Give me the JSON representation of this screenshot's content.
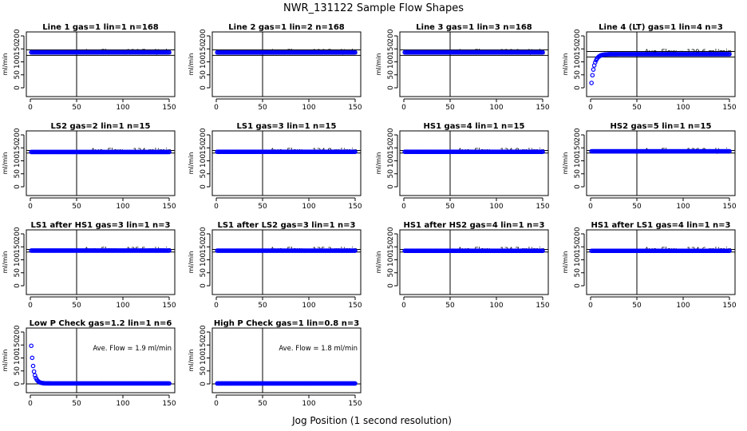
{
  "title": "NWR_131122  Sample Flow Shapes",
  "xlabel": "Jog Position (1 second resolution)",
  "chart_data": [
    {
      "type": "scatter",
      "title": "Line 1 gas=1 lin=1 n=168",
      "ylabel": "ml/min",
      "annotation": "Ave. Flow =  136.7  ml/min",
      "xlim": [
        0,
        150
      ],
      "ylim": [
        0,
        200
      ],
      "xticks": [
        0,
        50,
        100,
        150
      ],
      "yticks": [
        0,
        50,
        100,
        150,
        200
      ],
      "vline": 50,
      "hlines": [
        125,
        146
      ],
      "shape": "flat",
      "level": 136.7
    },
    {
      "type": "scatter",
      "title": "Line 2 gas=1 lin=2 n=168",
      "ylabel": "ml/min",
      "annotation": "Ave. Flow =  136.5  ml/min",
      "xlim": [
        0,
        150
      ],
      "ylim": [
        0,
        200
      ],
      "xticks": [
        0,
        50,
        100,
        150
      ],
      "yticks": [
        0,
        50,
        100,
        150,
        200
      ],
      "vline": 50,
      "hlines": [
        125,
        146
      ],
      "shape": "flat",
      "level": 136.5
    },
    {
      "type": "scatter",
      "title": "Line 3 gas=1 lin=3 n=168",
      "ylabel": "ml/min",
      "annotation": "Ave. Flow =  136.6  ml/min",
      "xlim": [
        0,
        150
      ],
      "ylim": [
        0,
        200
      ],
      "xticks": [
        0,
        50,
        100,
        150
      ],
      "yticks": [
        0,
        50,
        100,
        150,
        200
      ],
      "vline": 50,
      "hlines": [
        125,
        146
      ],
      "shape": "flat",
      "level": 136.6
    },
    {
      "type": "scatter",
      "title": "Line 4 (LT) gas=1 lin=4 n=3",
      "ylabel": "ml/min",
      "annotation": "Ave. Flow =  129.6  ml/min",
      "xlim": [
        0,
        150
      ],
      "ylim": [
        0,
        200
      ],
      "xticks": [
        0,
        50,
        100,
        150
      ],
      "yticks": [
        0,
        50,
        100,
        150,
        200
      ],
      "vline": 50,
      "hlines": [
        119,
        140
      ],
      "shape": "rise",
      "level": 129.6
    },
    {
      "type": "scatter",
      "title": "LS2 gas=2 lin=1 n=15",
      "ylabel": "ml/min",
      "annotation": "Ave. Flow =  134  ml/min",
      "xlim": [
        0,
        150
      ],
      "ylim": [
        0,
        200
      ],
      "xticks": [
        0,
        50,
        100,
        150
      ],
      "yticks": [
        0,
        50,
        100,
        150,
        200
      ],
      "vline": 50,
      "hlines": [
        130,
        140
      ],
      "shape": "flat",
      "level": 134
    },
    {
      "type": "scatter",
      "title": "LS1 gas=3 lin=1 n=15",
      "ylabel": "ml/min",
      "annotation": "Ave. Flow =  134.8  ml/min",
      "xlim": [
        0,
        150
      ],
      "ylim": [
        0,
        200
      ],
      "xticks": [
        0,
        50,
        100,
        150
      ],
      "yticks": [
        0,
        50,
        100,
        150,
        200
      ],
      "vline": 50,
      "hlines": [
        130,
        140
      ],
      "shape": "flat",
      "level": 134.8
    },
    {
      "type": "scatter",
      "title": "HS1 gas=4 lin=1 n=15",
      "ylabel": "ml/min",
      "annotation": "Ave. Flow =  134.8  ml/min",
      "xlim": [
        0,
        150
      ],
      "ylim": [
        0,
        200
      ],
      "xticks": [
        0,
        50,
        100,
        150
      ],
      "yticks": [
        0,
        50,
        100,
        150,
        200
      ],
      "vline": 50,
      "hlines": [
        130,
        140
      ],
      "shape": "flat",
      "level": 134.8
    },
    {
      "type": "scatter",
      "title": "HS2 gas=5 lin=1 n=15",
      "ylabel": "ml/min",
      "annotation": "Ave. Flow =  136.8  ml/min",
      "xlim": [
        0,
        150
      ],
      "ylim": [
        0,
        200
      ],
      "xticks": [
        0,
        50,
        100,
        150
      ],
      "yticks": [
        0,
        50,
        100,
        150,
        200
      ],
      "vline": 50,
      "hlines": [
        130,
        140
      ],
      "shape": "flat",
      "level": 136.8
    },
    {
      "type": "scatter",
      "title": "LS1 after HS1 gas=3 lin=1 n=3",
      "ylabel": "ml/min",
      "annotation": "Ave. Flow =  135.5  ml/min",
      "xlim": [
        0,
        150
      ],
      "ylim": [
        0,
        200
      ],
      "xticks": [
        0,
        50,
        100,
        150
      ],
      "yticks": [
        0,
        50,
        100,
        150,
        200
      ],
      "vline": 50,
      "hlines": [
        130,
        140
      ],
      "shape": "flat",
      "level": 135.5
    },
    {
      "type": "scatter",
      "title": "LS1 after LS2 gas=3 lin=1 n=3",
      "ylabel": "ml/min",
      "annotation": "Ave. Flow =  135.3  ml/min",
      "xlim": [
        0,
        150
      ],
      "ylim": [
        0,
        200
      ],
      "xticks": [
        0,
        50,
        100,
        150
      ],
      "yticks": [
        0,
        50,
        100,
        150,
        200
      ],
      "vline": 50,
      "hlines": [
        130,
        140
      ],
      "shape": "flat",
      "level": 135.3
    },
    {
      "type": "scatter",
      "title": "HS1 after HS2 gas=4 lin=1 n=3",
      "ylabel": "ml/min",
      "annotation": "Ave. Flow =  134.7  ml/min",
      "xlim": [
        0,
        150
      ],
      "ylim": [
        0,
        200
      ],
      "xticks": [
        0,
        50,
        100,
        150
      ],
      "yticks": [
        0,
        50,
        100,
        150,
        200
      ],
      "vline": 50,
      "hlines": [
        130,
        140
      ],
      "shape": "flat",
      "level": 134.7
    },
    {
      "type": "scatter",
      "title": "HS1 after LS1 gas=4 lin=1 n=3",
      "ylabel": "ml/min",
      "annotation": "Ave. Flow =  134.6  ml/min",
      "xlim": [
        0,
        150
      ],
      "ylim": [
        0,
        200
      ],
      "xticks": [
        0,
        50,
        100,
        150
      ],
      "yticks": [
        0,
        50,
        100,
        150,
        200
      ],
      "vline": 50,
      "hlines": [
        130,
        140
      ],
      "shape": "flat",
      "level": 134.6
    },
    {
      "type": "scatter",
      "title": "Low P Check gas=1.2 lin=1 n=6",
      "ylabel": "ml/min",
      "annotation": "Ave. Flow =  1.9  ml/min",
      "xlim": [
        0,
        150
      ],
      "ylim": [
        0,
        200
      ],
      "xticks": [
        0,
        50,
        100,
        150
      ],
      "yticks": [
        0,
        50,
        100,
        150,
        200
      ],
      "vline": 50,
      "hlines": [
        0
      ],
      "shape": "decay",
      "level": 1.9
    },
    {
      "type": "scatter",
      "title": "High P Check gas=1 lin=0.8 n=3",
      "ylabel": "ml/min",
      "annotation": "Ave. Flow =  1.8  ml/min",
      "xlim": [
        0,
        150
      ],
      "ylim": [
        0,
        200
      ],
      "xticks": [
        0,
        50,
        100,
        150
      ],
      "yticks": [
        0,
        50,
        100,
        150,
        200
      ],
      "vline": 50,
      "hlines": [
        0
      ],
      "shape": "flat",
      "level": 1.8
    }
  ]
}
